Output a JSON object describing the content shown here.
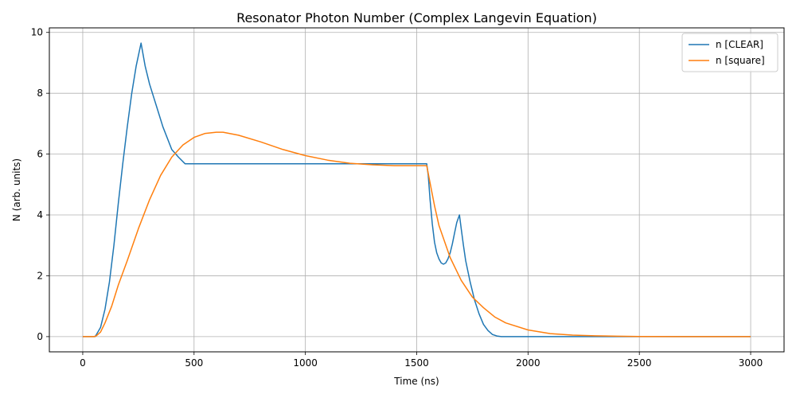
{
  "chart_data": {
    "type": "line",
    "title": "Resonator Photon Number (Complex Langevin Equation)",
    "xlabel": "Time (ns)",
    "ylabel": "N (arb. units)",
    "xlim": [
      -150,
      3150
    ],
    "ylim": [
      -0.5,
      10.15
    ],
    "xticks": [
      0,
      500,
      1000,
      1500,
      2000,
      2500,
      3000
    ],
    "yticks": [
      0,
      2,
      4,
      6,
      8,
      10
    ],
    "xtick_labels": [
      "0",
      "500",
      "1000",
      "1500",
      "2000",
      "2500",
      "3000"
    ],
    "ytick_labels": [
      "0",
      "2",
      "4",
      "6",
      "8",
      "10"
    ],
    "grid": true,
    "legend_position": "top-right",
    "series": [
      {
        "name": "n [CLEAR]",
        "color": "#1f77b4",
        "x": [
          0,
          55,
          60,
          80,
          100,
          120,
          140,
          160,
          180,
          200,
          220,
          240,
          262,
          280,
          300,
          330,
          360,
          400,
          430,
          460,
          500,
          800,
          1200,
          1545,
          1552,
          1560,
          1570,
          1580,
          1590,
          1600,
          1610,
          1620,
          1630,
          1640,
          1650,
          1660,
          1670,
          1680,
          1692,
          1700,
          1710,
          1720,
          1740,
          1760,
          1780,
          1800,
          1820,
          1840,
          1860,
          1880,
          2000,
          2500,
          3000
        ],
        "y": [
          0,
          0,
          0.05,
          0.3,
          0.9,
          1.8,
          3.0,
          4.4,
          5.7,
          6.9,
          8.0,
          8.9,
          9.65,
          8.9,
          8.3,
          7.6,
          6.9,
          6.15,
          5.9,
          5.68,
          5.68,
          5.68,
          5.68,
          5.68,
          5.3,
          4.5,
          3.7,
          3.1,
          2.75,
          2.55,
          2.42,
          2.38,
          2.42,
          2.55,
          2.75,
          3.05,
          3.4,
          3.75,
          4.0,
          3.55,
          3.0,
          2.5,
          1.8,
          1.2,
          0.75,
          0.4,
          0.2,
          0.07,
          0.02,
          0.0,
          0.0,
          0.0,
          0.0
        ]
      },
      {
        "name": "n [square]",
        "color": "#ff7f0e",
        "x": [
          0,
          50,
          60,
          80,
          100,
          130,
          160,
          200,
          250,
          300,
          350,
          400,
          450,
          500,
          550,
          600,
          630,
          700,
          800,
          900,
          1000,
          1100,
          1200,
          1300,
          1400,
          1500,
          1545,
          1560,
          1580,
          1600,
          1650,
          1700,
          1750,
          1800,
          1850,
          1900,
          2000,
          2100,
          2200,
          2300,
          2400,
          2500,
          2700,
          3000
        ],
        "y": [
          0,
          0,
          0.02,
          0.15,
          0.45,
          1.0,
          1.7,
          2.5,
          3.55,
          4.5,
          5.3,
          5.9,
          6.3,
          6.55,
          6.68,
          6.72,
          6.72,
          6.62,
          6.4,
          6.15,
          5.95,
          5.8,
          5.7,
          5.65,
          5.62,
          5.62,
          5.62,
          5.05,
          4.3,
          3.65,
          2.6,
          1.85,
          1.3,
          0.95,
          0.65,
          0.45,
          0.22,
          0.1,
          0.05,
          0.025,
          0.012,
          0.005,
          0.001,
          0.0
        ]
      }
    ]
  }
}
